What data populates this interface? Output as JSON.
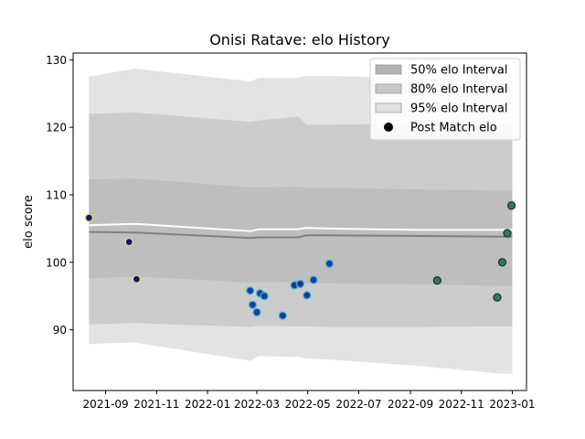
{
  "chart_data": {
    "type": "scatter",
    "title": "Onisi Ratave: elo History",
    "xlabel": "",
    "ylabel": "elo score",
    "xlim": [
      "2021-07-24",
      "2023-01-18"
    ],
    "ylim": [
      81,
      131
    ],
    "x_ticks": [
      "2021-09",
      "2021-11",
      "2022-01",
      "2022-03",
      "2022-05",
      "2022-07",
      "2022-09",
      "2022-11",
      "2023-01"
    ],
    "y_ticks": [
      90,
      100,
      110,
      120,
      130
    ],
    "grid": false,
    "legend": {
      "position": "upper right",
      "entries": [
        "50% elo Interval",
        "80% elo Interval",
        "95% elo Interval",
        "Post Match elo"
      ]
    },
    "interval_dates": [
      "2021-08-12",
      "2021-10-06",
      "2022-02-22",
      "2022-03-03",
      "2022-04-20",
      "2022-04-29",
      "2022-05-26",
      "2022-09-15",
      "2022-12-18",
      "2023-01-01"
    ],
    "band_95": {
      "upper": [
        127.5,
        128.7,
        126.8,
        127.3,
        127.3,
        127.6,
        127.6,
        127.3,
        127.0,
        127.0
      ],
      "lower": [
        87.9,
        88.1,
        85.4,
        86.1,
        86.0,
        85.7,
        85.6,
        84.6,
        83.5,
        83.5
      ]
    },
    "band_80": {
      "upper": [
        122.0,
        122.2,
        120.8,
        121.0,
        121.6,
        120.4,
        120.4,
        120.5,
        120.4,
        120.4
      ],
      "lower": [
        90.8,
        91.0,
        90.4,
        90.6,
        90.5,
        90.5,
        90.4,
        90.4,
        90.5,
        90.5
      ]
    },
    "band_50": {
      "upper": [
        112.3,
        112.4,
        111.1,
        111.1,
        111.2,
        111.0,
        111.0,
        110.8,
        110.6,
        110.6
      ],
      "lower": [
        97.6,
        97.9,
        97.0,
        97.0,
        97.1,
        96.9,
        96.9,
        96.7,
        96.5,
        96.5
      ]
    },
    "mean_line": [
      105.5,
      105.7,
      104.6,
      104.9,
      104.9,
      105.1,
      105.0,
      104.8,
      104.8,
      104.8
    ],
    "median_line": [
      104.5,
      104.4,
      103.6,
      103.7,
      103.7,
      104.0,
      104.0,
      103.9,
      103.8,
      103.8
    ],
    "series": [
      {
        "name": "Post Match elo",
        "points": [
          {
            "date": "2021-08-12",
            "elo": 106.6,
            "face": "#0a0a8c",
            "edge": "#f0e442"
          },
          {
            "date": "2021-09-29",
            "elo": 103.0,
            "face": "#0a0a8c",
            "edge": "#f0e442"
          },
          {
            "date": "2021-10-08",
            "elo": 97.5,
            "face": "#0a0a8c",
            "edge": "#f0e442"
          },
          {
            "date": "2022-02-21",
            "elo": 95.8,
            "face": "#1a3aa0",
            "edge": "#3fb8c8"
          },
          {
            "date": "2022-02-24",
            "elo": 93.7,
            "face": "#1a3aa0",
            "edge": "#3fb8c8"
          },
          {
            "date": "2022-03-01",
            "elo": 92.6,
            "face": "#1a3aa0",
            "edge": "#3fb8c8"
          },
          {
            "date": "2022-03-05",
            "elo": 95.4,
            "face": "#1a3aa0",
            "edge": "#3fb8c8"
          },
          {
            "date": "2022-03-10",
            "elo": 95.0,
            "face": "#1a3aa0",
            "edge": "#3fb8c8"
          },
          {
            "date": "2022-04-01",
            "elo": 92.1,
            "face": "#1a3aa0",
            "edge": "#3fb8c8"
          },
          {
            "date": "2022-04-15",
            "elo": 96.6,
            "face": "#1a3aa0",
            "edge": "#3fb8c8"
          },
          {
            "date": "2022-04-22",
            "elo": 96.8,
            "face": "#1a3aa0",
            "edge": "#3fb8c8"
          },
          {
            "date": "2022-04-30",
            "elo": 95.1,
            "face": "#1a3aa0",
            "edge": "#3fb8c8"
          },
          {
            "date": "2022-05-08",
            "elo": 97.4,
            "face": "#1a3aa0",
            "edge": "#3fb8c8"
          },
          {
            "date": "2022-05-27",
            "elo": 99.8,
            "face": "#1a3aa0",
            "edge": "#3fb8c8"
          },
          {
            "date": "2022-10-03",
            "elo": 97.3,
            "face": "#2a7d58",
            "edge": "#1c3a2c"
          },
          {
            "date": "2022-12-14",
            "elo": 94.8,
            "face": "#2a7d58",
            "edge": "#1c3a2c"
          },
          {
            "date": "2022-12-20",
            "elo": 100.0,
            "face": "#2a7d58",
            "edge": "#1c3a2c"
          },
          {
            "date": "2022-12-26",
            "elo": 104.3,
            "face": "#2a7d58",
            "edge": "#1c3a2c"
          },
          {
            "date": "2022-12-31",
            "elo": 108.4,
            "face": "#2a7d58",
            "edge": "#1c3a2c"
          }
        ]
      }
    ],
    "colors": {
      "band_95": "#e3e3e3",
      "band_80": "#cccccc",
      "band_50": "#bebebe",
      "mean_line": "#ffffff",
      "median_line": "#808080",
      "legend_50": "#b2b2b2",
      "legend_80": "#c8c8c8",
      "legend_95": "#e0e0e0"
    }
  }
}
